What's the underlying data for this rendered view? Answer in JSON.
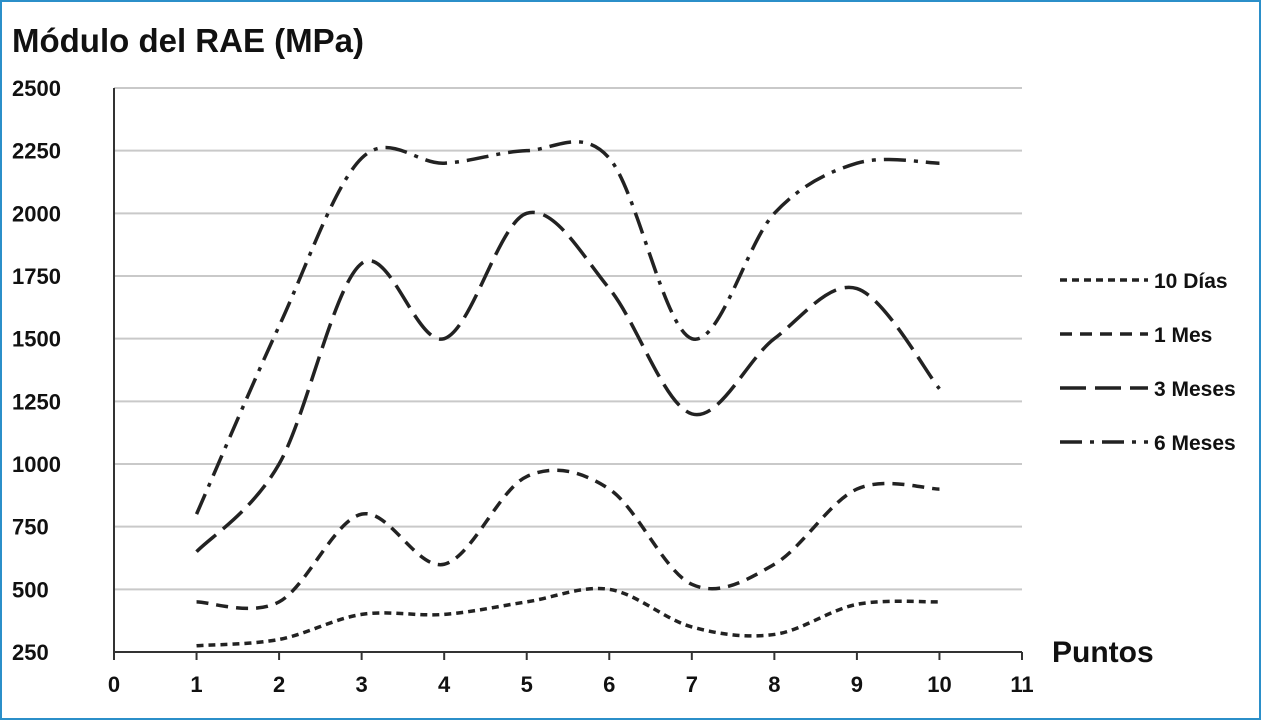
{
  "chart_data": {
    "type": "line",
    "title": "Módulo del RAE (MPa)",
    "xlabel": "Puntos",
    "ylabel": "",
    "x": [
      1,
      2,
      3,
      4,
      5,
      6,
      7,
      8,
      9,
      10
    ],
    "xlim": [
      0,
      11
    ],
    "ylim": [
      250,
      2500
    ],
    "x_ticks": [
      "0",
      "1",
      "2",
      "3",
      "4",
      "5",
      "6",
      "7",
      "8",
      "9",
      "10",
      "11"
    ],
    "y_ticks": [
      "2500",
      "2250",
      "2000",
      "1750",
      "1500",
      "1250",
      "1000",
      "750",
      "500",
      "250"
    ],
    "grid": "horizontal",
    "legend_position": "right",
    "smooth": true,
    "series": [
      {
        "name": "10 Días",
        "dash": "short-dash",
        "color": "#222222",
        "values": [
          275,
          300,
          400,
          400,
          450,
          500,
          350,
          320,
          440,
          450
        ]
      },
      {
        "name": "1 Mes",
        "dash": "medium-dash",
        "color": "#222222",
        "values": [
          450,
          450,
          800,
          600,
          950,
          900,
          520,
          600,
          900,
          900
        ]
      },
      {
        "name": "3 Meses",
        "dash": "long-dash",
        "color": "#222222",
        "values": [
          650,
          1000,
          1800,
          1500,
          2000,
          1700,
          1200,
          1500,
          1700,
          1300
        ]
      },
      {
        "name": "6 Meses",
        "dash": "dash-dot",
        "color": "#222222",
        "values": [
          800,
          1550,
          2220,
          2200,
          2250,
          2220,
          1500,
          2000,
          2200,
          2200
        ]
      }
    ]
  }
}
